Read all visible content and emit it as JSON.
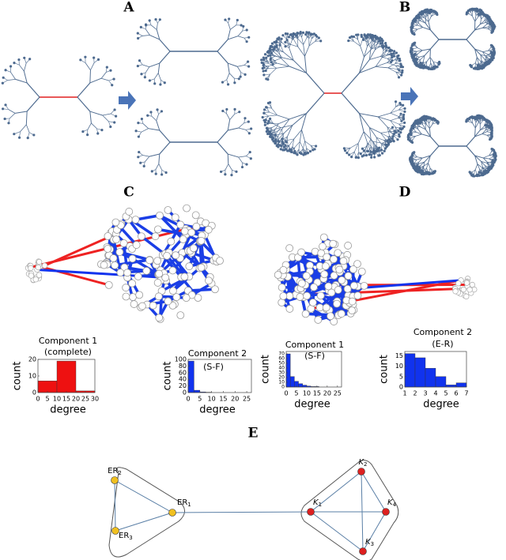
{
  "panel_labels": [
    "A",
    "B",
    "C",
    "D",
    "E"
  ],
  "histograms": [
    {
      "title": "Component 1",
      "subtitle": "(complete)",
      "ylabel": "count",
      "xlabel": "degree",
      "color": "#ee1111",
      "bins": [
        0,
        10,
        20,
        30
      ],
      "counts": [
        7,
        19,
        1
      ],
      "xlim": [
        0,
        30
      ],
      "ylim": [
        0,
        20
      ],
      "xticks": [
        0,
        5,
        10,
        15,
        20,
        25,
        30
      ],
      "yticks": [
        0,
        10,
        20
      ]
    },
    {
      "title": "Component 2",
      "subtitle": "(S-F)",
      "ylabel": "count",
      "xlabel": "degree",
      "color": "#1133ee",
      "bins": [
        0,
        2.5,
        5,
        7.5,
        10
      ],
      "counts": [
        95,
        7,
        2,
        1
      ],
      "xlim": [
        0,
        27
      ],
      "ylim": [
        0,
        100
      ],
      "xticks": [
        0,
        5,
        10,
        15,
        20,
        25
      ],
      "yticks": [
        0,
        20,
        40,
        60,
        80,
        100
      ]
    },
    {
      "title": "Component 1",
      "subtitle": "(S-F)",
      "ylabel": "count",
      "xlabel": "degree",
      "color": "#1133ee",
      "bins": [
        0,
        2,
        4,
        6,
        8,
        10,
        12,
        14,
        16
      ],
      "counts": [
        70,
        22,
        12,
        7,
        4,
        2,
        1,
        1
      ],
      "xlim": [
        0,
        27
      ],
      "ylim": [
        0,
        75
      ],
      "xticks": [
        0,
        5,
        10,
        15,
        20,
        25
      ],
      "yticks": [
        0,
        10,
        20,
        30,
        40,
        50,
        60,
        70
      ]
    },
    {
      "title": "Component 2",
      "subtitle": "(E-R)",
      "ylabel": "count",
      "xlabel": "degree",
      "color": "#1133ee",
      "bins": [
        1,
        2,
        3,
        4,
        5,
        6,
        7
      ],
      "counts": [
        16,
        14,
        9,
        5,
        1,
        2
      ],
      "xlim": [
        1,
        7
      ],
      "ylim": [
        0,
        17
      ],
      "xticks": [
        1,
        2,
        3,
        4,
        5,
        6,
        7
      ],
      "yticks": [
        0,
        5,
        10,
        15
      ]
    }
  ],
  "graph_e": {
    "nodes": [
      {
        "base": "ER",
        "sub": "2"
      },
      {
        "base": "ER",
        "sub": "1"
      },
      {
        "base": "ER",
        "sub": "3"
      },
      {
        "base": "K",
        "sub": "2"
      },
      {
        "base": "K",
        "sub": "1"
      },
      {
        "base": "K",
        "sub": "4"
      },
      {
        "base": "K",
        "sub": "3"
      }
    ]
  }
}
